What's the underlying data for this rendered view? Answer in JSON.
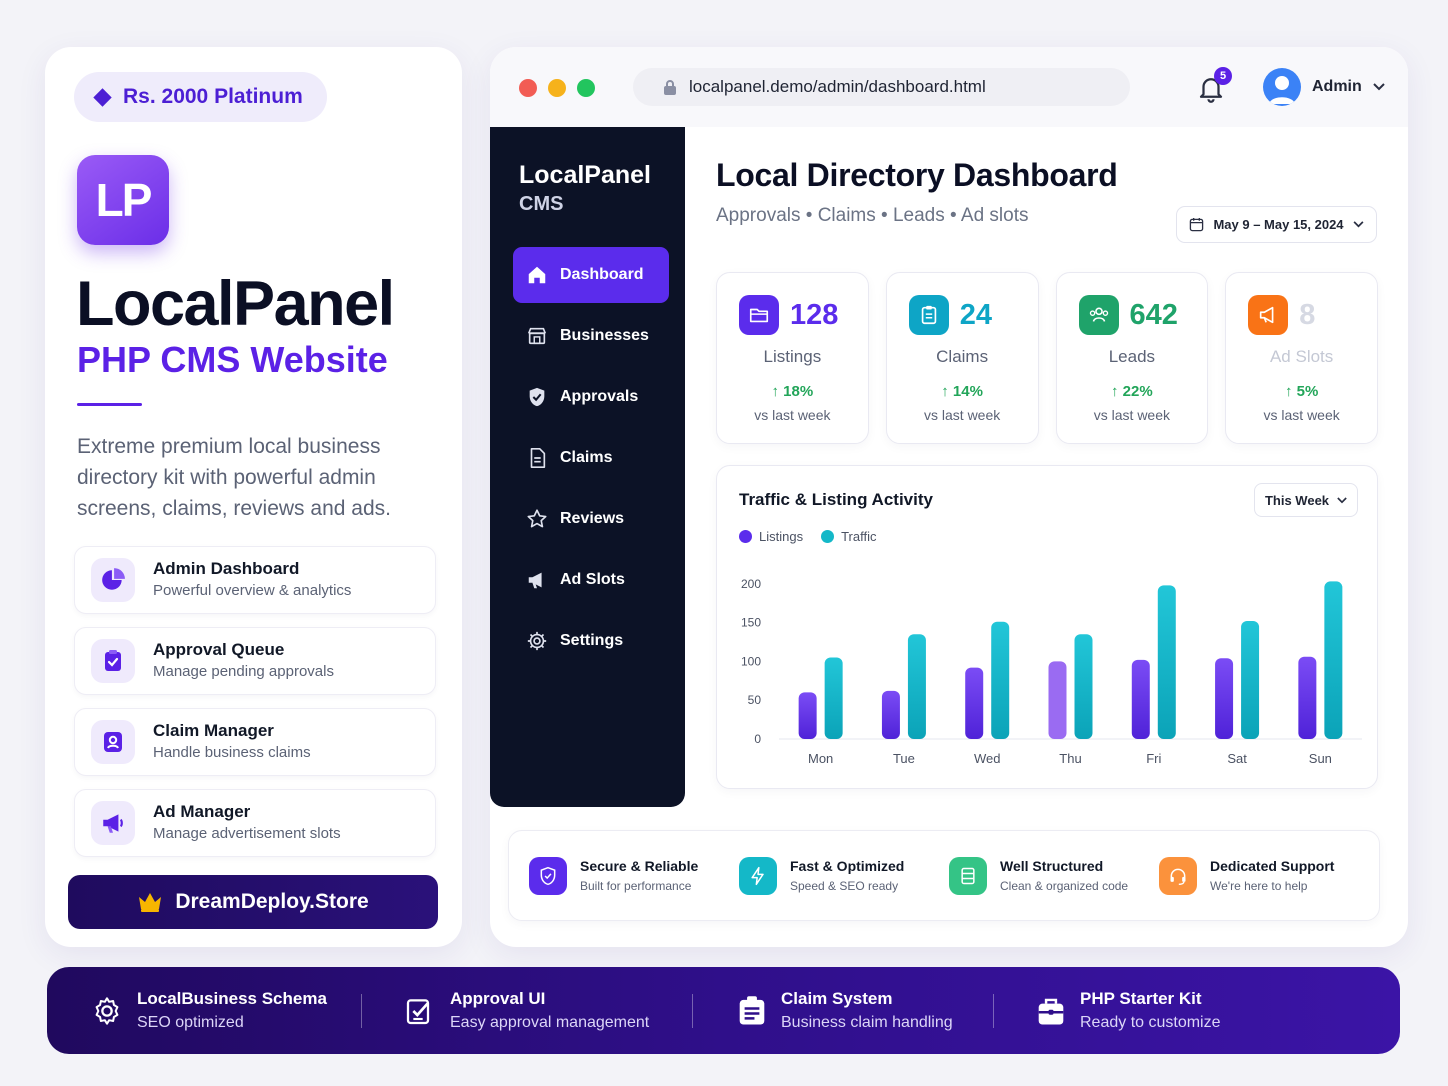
{
  "promo": {
    "price_badge": "Rs. 2000 Platinum",
    "logo_text": "LP",
    "title": "LocalPanel",
    "subtitle": "PHP CMS Website",
    "description": "Extreme premium local business directory kit with powerful admin screens, claims, reviews and ads.",
    "features": [
      {
        "title": "Admin Dashboard",
        "subtitle": "Powerful overview & analytics",
        "icon": "pie-chart-icon"
      },
      {
        "title": "Approval Queue",
        "subtitle": "Manage pending approvals",
        "icon": "clipboard-check-icon"
      },
      {
        "title": "Claim Manager",
        "subtitle": "Handle business claims",
        "icon": "user-badge-icon"
      },
      {
        "title": "Ad Manager",
        "subtitle": "Manage advertisement slots",
        "icon": "megaphone-icon"
      }
    ],
    "store_button": "DreamDeploy.Store",
    "accent": "#5b21e6"
  },
  "window": {
    "url": "localpanel.demo/admin/dashboard.html",
    "notification_count": "5",
    "user_name": "Admin",
    "traffic_lights": [
      "#f25c54",
      "#f6b21b",
      "#22c55e"
    ]
  },
  "sidebar": {
    "brand": "LocalPanel",
    "brand_sub": "CMS",
    "items": [
      {
        "label": "Dashboard",
        "icon": "home-icon",
        "active": true
      },
      {
        "label": "Businesses",
        "icon": "store-icon"
      },
      {
        "label": "Approvals",
        "icon": "shield-check-icon"
      },
      {
        "label": "Claims",
        "icon": "document-icon"
      },
      {
        "label": "Reviews",
        "icon": "star-icon"
      },
      {
        "label": "Ad Slots",
        "icon": "megaphone-icon"
      },
      {
        "label": "Settings",
        "icon": "gear-icon"
      }
    ]
  },
  "main": {
    "title": "Local Directory Dashboard",
    "subtitle": "Approvals • Claims • Leads • Ad slots",
    "date_range": "May 9 – May 15, 2024",
    "stats": [
      {
        "value": "128",
        "label": "Listings",
        "trend": "↑ 18%",
        "compare": "vs last week",
        "color": "#5b2cec",
        "icon": "folder-icon"
      },
      {
        "value": "24",
        "label": "Claims",
        "trend": "↑ 14%",
        "compare": "vs last week",
        "color": "#0ea5c6",
        "icon": "clipboard-icon"
      },
      {
        "value": "642",
        "label": "Leads",
        "trend": "↑ 22%",
        "compare": "vs last week",
        "color": "#1fa36a",
        "icon": "users-icon"
      },
      {
        "value": "8",
        "label": "Ad Slots",
        "trend": "↑ 5%",
        "compare": "vs last week",
        "color": "#f97316",
        "icon": "megaphone-icon"
      }
    ],
    "chart_title": "Traffic & Listing Activity",
    "chart_period": "This Week"
  },
  "chart_data": {
    "type": "bar",
    "categories": [
      "Mon",
      "Tue",
      "Wed",
      "Thu",
      "Fri",
      "Sat",
      "Sun"
    ],
    "series": [
      {
        "name": "Listings",
        "values": [
          60,
          62,
          92,
          100,
          102,
          104,
          106
        ],
        "color": "#5b2cec"
      },
      {
        "name": "Traffic",
        "values": [
          105,
          135,
          151,
          135,
          198,
          152,
          203
        ],
        "color": "#14b8c8"
      }
    ],
    "yticks": [
      0,
      50,
      100,
      150,
      200
    ],
    "ylim": [
      0,
      210
    ],
    "legend": "top-left",
    "grid": false
  },
  "benefits": [
    {
      "title": "Secure & Reliable",
      "subtitle": "Built for performance",
      "color": "#5b2cec",
      "icon": "shield-icon"
    },
    {
      "title": "Fast & Optimized",
      "subtitle": "Speed & SEO ready",
      "color": "#14b8c8",
      "icon": "lightning-icon"
    },
    {
      "title": "Well Structured",
      "subtitle": "Clean & organized code",
      "color": "#34c486",
      "icon": "database-icon"
    },
    {
      "title": "Dedicated Support",
      "subtitle": "We're here to help",
      "color": "#fb923c",
      "icon": "headset-icon"
    }
  ],
  "banner": [
    {
      "title": "LocalBusiness Schema",
      "subtitle": "SEO optimized",
      "icon": "gear-cog-icon"
    },
    {
      "title": "Approval UI",
      "subtitle": "Easy approval management",
      "icon": "checklist-icon"
    },
    {
      "title": "Claim System",
      "subtitle": "Business claim handling",
      "icon": "claim-card-icon"
    },
    {
      "title": "PHP Starter Kit",
      "subtitle": "Ready to customize",
      "icon": "toolbox-icon"
    }
  ]
}
